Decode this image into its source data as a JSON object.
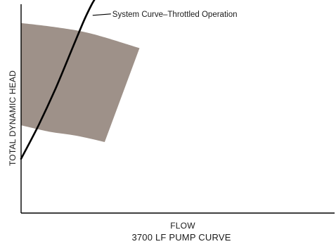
{
  "chart_data": {
    "type": "line",
    "title": "3700 LF PUMP CURVE",
    "xlabel": "FLOW",
    "ylabel": "TOTAL DYNAMIC HEAD",
    "grid": false,
    "legend": "none",
    "ticks": "none",
    "series": [
      {
        "name": "System Curve–Throttled Operation",
        "color": "#000000",
        "points": [
          [
            0,
            0.26
          ],
          [
            0.05,
            0.42
          ],
          [
            0.1,
            0.6
          ],
          [
            0.15,
            0.8
          ],
          [
            0.18,
            0.92
          ],
          [
            0.2,
            0.99
          ],
          [
            0.21,
            1.02
          ]
        ]
      }
    ],
    "operating_region": {
      "color": "#9e9189",
      "top_edge": [
        [
          0,
          0.91
        ],
        [
          0.1,
          0.89
        ],
        [
          0.2,
          0.86
        ],
        [
          0.34,
          0.79
        ]
      ],
      "bottom_edge": [
        [
          0,
          0.42
        ],
        [
          0.08,
          0.39
        ],
        [
          0.16,
          0.37
        ],
        [
          0.24,
          0.34
        ]
      ]
    },
    "xlim": [
      0,
      0.9
    ],
    "ylim": [
      0,
      1.0
    ]
  }
}
